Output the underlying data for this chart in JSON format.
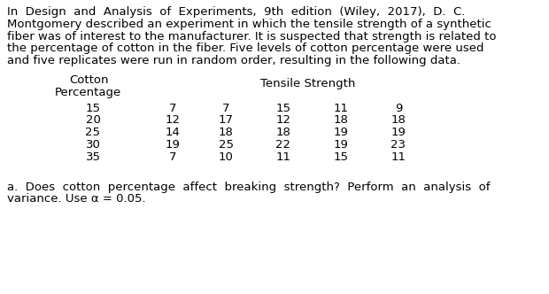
{
  "intro_lines": [
    "In  Design  and  Analysis  of  Experiments,  9th  edition  (Wiley,  2017),  D.  C.",
    "Montgomery described an experiment in which the tensile strength of a synthetic",
    "fiber was of interest to the manufacturer. It is suspected that strength is related to",
    "the percentage of cotton in the fiber. Five levels of cotton percentage were used",
    "and five replicates were run in random order, resulting in the following data."
  ],
  "header_left_line1": "Cotton",
  "header_left_line2": "Percentage",
  "header_right": "Tensile Strength",
  "table_data": [
    [
      15,
      7,
      7,
      15,
      11,
      9
    ],
    [
      20,
      12,
      17,
      12,
      18,
      18
    ],
    [
      25,
      14,
      18,
      18,
      19,
      19
    ],
    [
      30,
      19,
      25,
      22,
      19,
      23
    ],
    [
      35,
      7,
      10,
      11,
      15,
      11
    ]
  ],
  "question_lines": [
    "a.  Does  cotton  percentage  affect  breaking  strength?  Perform  an  analysis  of",
    "variance. Use α = 0.05."
  ],
  "bg_color": "#ffffff",
  "text_color": "#000000",
  "font_size": 9.5,
  "font_family": "DejaVu Sans"
}
